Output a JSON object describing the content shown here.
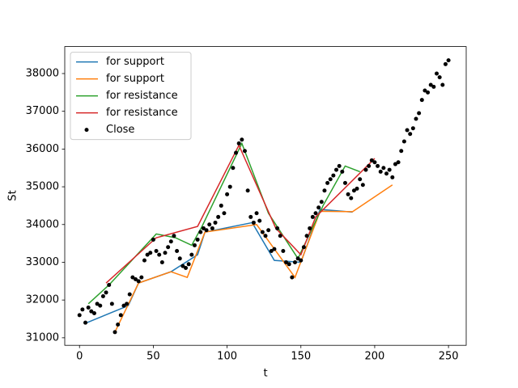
{
  "chart_data": {
    "type": "line",
    "xlabel": "t",
    "ylabel": "St",
    "xlim": [
      -10,
      262
    ],
    "ylim": [
      30800,
      38715
    ],
    "xticks": [
      0,
      50,
      100,
      150,
      200,
      250
    ],
    "yticks": [
      31000,
      32000,
      33000,
      34000,
      35000,
      36000,
      37000,
      38000
    ],
    "legend": "upper-left",
    "series": [
      {
        "name": "for support",
        "type": "line",
        "color": "#1f77b4",
        "x": [
          5,
          33,
          40,
          62,
          80,
          85,
          117,
          132,
          150,
          163,
          185
        ],
        "values": [
          31400,
          31850,
          32450,
          32750,
          33200,
          33800,
          34050,
          33050,
          33000,
          34400,
          34330
        ]
      },
      {
        "name": "for support",
        "type": "line",
        "color": "#ff7f0e",
        "x": [
          24,
          40,
          62,
          73,
          85,
          120,
          146,
          163,
          185,
          212
        ],
        "values": [
          31150,
          32450,
          32750,
          32600,
          33800,
          34000,
          32600,
          34350,
          34340,
          35050
        ]
      },
      {
        "name": "for resistance",
        "type": "line",
        "color": "#2ca02c",
        "x": [
          6,
          20,
          52,
          65,
          76,
          83,
          110,
          128,
          148,
          165,
          180,
          190
        ],
        "values": [
          31900,
          32400,
          33750,
          33650,
          33450,
          33950,
          36150,
          34300,
          33100,
          34500,
          35550,
          35400
        ]
      },
      {
        "name": "for resistance",
        "type": "line",
        "color": "#d62728",
        "x": [
          18,
          52,
          80,
          108,
          133,
          150,
          160,
          200
        ],
        "values": [
          32450,
          33650,
          33950,
          36100,
          33900,
          33200,
          34200,
          35750
        ]
      },
      {
        "name": "Close",
        "type": "scatter",
        "color": "#000000",
        "x": [
          0,
          2,
          4,
          6,
          8,
          10,
          12,
          14,
          16,
          18,
          20,
          22,
          24,
          26,
          28,
          30,
          32,
          34,
          36,
          38,
          40,
          42,
          44,
          46,
          48,
          50,
          52,
          54,
          56,
          58,
          60,
          62,
          64,
          66,
          68,
          70,
          72,
          74,
          76,
          78,
          80,
          82,
          84,
          86,
          88,
          90,
          92,
          94,
          96,
          98,
          100,
          102,
          104,
          106,
          108,
          110,
          112,
          114,
          116,
          118,
          120,
          122,
          124,
          126,
          128,
          130,
          132,
          134,
          136,
          138,
          140,
          142,
          144,
          146,
          148,
          150,
          152,
          154,
          156,
          158,
          160,
          162,
          164,
          166,
          168,
          170,
          172,
          174,
          176,
          178,
          180,
          182,
          184,
          186,
          188,
          190,
          192,
          194,
          196,
          198,
          200,
          202,
          204,
          206,
          208,
          210,
          212,
          214,
          216,
          218,
          220,
          222,
          224,
          226,
          228,
          230,
          232,
          234,
          236,
          238,
          240,
          242,
          244,
          246,
          248,
          250
        ],
        "values": [
          31600,
          31750,
          31400,
          31800,
          31700,
          31650,
          31900,
          31850,
          32100,
          32200,
          32400,
          31900,
          31150,
          31350,
          31600,
          31850,
          31900,
          32150,
          32600,
          32550,
          32500,
          32600,
          33050,
          33200,
          33250,
          33600,
          33300,
          33200,
          33000,
          33250,
          33400,
          33550,
          33700,
          33300,
          33100,
          32900,
          32850,
          32950,
          33200,
          33450,
          33600,
          33800,
          33900,
          33850,
          34000,
          33900,
          34050,
          34200,
          34500,
          34300,
          34800,
          35000,
          35500,
          35900,
          36150,
          36250,
          35950,
          34900,
          34200,
          34050,
          34300,
          34100,
          33800,
          33700,
          33850,
          33300,
          33350,
          33900,
          33700,
          33300,
          33000,
          32950,
          32600,
          33000,
          33100,
          33050,
          33400,
          33700,
          33900,
          34200,
          34300,
          34450,
          34600,
          34900,
          35100,
          35200,
          35300,
          35450,
          35550,
          35400,
          35100,
          34800,
          34700,
          34900,
          34950,
          35200,
          35050,
          35450,
          35550,
          35700,
          35650,
          35550,
          35400,
          35500,
          35350,
          35450,
          35250,
          35600,
          35650,
          35950,
          36200,
          36500,
          36400,
          36550,
          36800,
          36950,
          37300,
          37550,
          37500,
          37700,
          37650,
          38000,
          37900,
          37700,
          38250,
          38350
        ]
      }
    ]
  }
}
